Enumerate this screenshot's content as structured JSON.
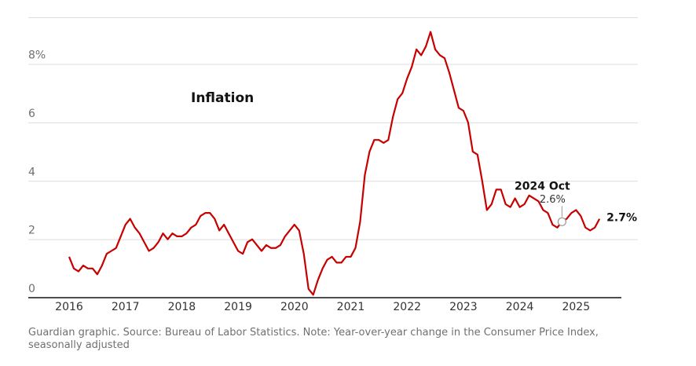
{
  "chart_data": {
    "type": "line",
    "title": "Inflation",
    "caption": "Guardian graphic. Source: Bureau of Labor Statistics. Note: Year-over-year change in the Consumer Price Index, seasonally adjusted",
    "categories": [
      "2016",
      null,
      null,
      null,
      null,
      null,
      null,
      null,
      null,
      null,
      null,
      null,
      "2017",
      null,
      null,
      null,
      null,
      null,
      null,
      null,
      null,
      null,
      null,
      null,
      "2018",
      null,
      null,
      null,
      null,
      null,
      null,
      null,
      null,
      null,
      null,
      null,
      "2019",
      null,
      null,
      null,
      null,
      null,
      null,
      null,
      null,
      null,
      null,
      null,
      "2020",
      null,
      null,
      null,
      null,
      null,
      null,
      null,
      null,
      null,
      null,
      null,
      "2021",
      null,
      null,
      null,
      null,
      null,
      null,
      null,
      null,
      null,
      null,
      null,
      "2022",
      null,
      null,
      null,
      null,
      null,
      null,
      null,
      null,
      null,
      null,
      null,
      "2023",
      null,
      null,
      null,
      null,
      null,
      null,
      null,
      null,
      null,
      null,
      null,
      "2024",
      null,
      null,
      null,
      null,
      null,
      null,
      null,
      null,
      null,
      null,
      null,
      "2025",
      null,
      null,
      null,
      null,
      null
    ],
    "series": [
      {
        "name": "Inflation",
        "color": "#c70000",
        "values": [
          1.4,
          1.0,
          0.9,
          1.1,
          1.0,
          1.0,
          0.8,
          1.1,
          1.5,
          1.6,
          1.7,
          2.1,
          2.5,
          2.7,
          2.4,
          2.2,
          1.9,
          1.6,
          1.7,
          1.9,
          2.2,
          2.0,
          2.2,
          2.1,
          2.1,
          2.2,
          2.4,
          2.5,
          2.8,
          2.9,
          2.9,
          2.7,
          2.3,
          2.5,
          2.2,
          1.9,
          1.6,
          1.5,
          1.9,
          2.0,
          1.8,
          1.6,
          1.8,
          1.7,
          1.7,
          1.8,
          2.1,
          2.3,
          2.5,
          2.3,
          1.5,
          0.3,
          0.1,
          0.6,
          1.0,
          1.3,
          1.4,
          1.2,
          1.2,
          1.4,
          1.4,
          1.7,
          2.6,
          4.2,
          5.0,
          5.4,
          5.4,
          5.3,
          5.4,
          6.2,
          6.8,
          7.0,
          7.5,
          7.9,
          8.5,
          8.3,
          8.6,
          9.1,
          8.5,
          8.3,
          8.2,
          7.7,
          7.1,
          6.5,
          6.4,
          6.0,
          5.0,
          4.9,
          4.0,
          3.0,
          3.2,
          3.7,
          3.7,
          3.2,
          3.1,
          3.4,
          3.1,
          3.2,
          3.5,
          3.4,
          3.3,
          3.0,
          2.9,
          2.5,
          2.4,
          2.6,
          2.7,
          2.9,
          3.0,
          2.8,
          2.4,
          2.3,
          2.4,
          2.7
        ],
        "value_labels": [
          null,
          null,
          null,
          null,
          null,
          null,
          null,
          null,
          null,
          null,
          null,
          null,
          null,
          null,
          null,
          null,
          null,
          null,
          null,
          null,
          null,
          null,
          null,
          null,
          null,
          null,
          null,
          null,
          null,
          null,
          null,
          null,
          null,
          null,
          null,
          null,
          null,
          null,
          null,
          null,
          null,
          null,
          null,
          null,
          null,
          null,
          null,
          null,
          null,
          null,
          null,
          null,
          null,
          null,
          null,
          null,
          null,
          null,
          null,
          null,
          null,
          null,
          null,
          null,
          null,
          null,
          null,
          null,
          null,
          null,
          null,
          null,
          null,
          null,
          null,
          null,
          null,
          null,
          null,
          null,
          null,
          null,
          null,
          null,
          null,
          null,
          null,
          null,
          null,
          null,
          null,
          null,
          null,
          null,
          null,
          null,
          null,
          null,
          null,
          null,
          null,
          null,
          null,
          null,
          null,
          "2.6%",
          null,
          null,
          null,
          null,
          null,
          null,
          null,
          "2.7%"
        ]
      }
    ],
    "annotation": "2024 Oct",
    "ylim": [
      0,
      9.6
    ],
    "yticks": [
      0,
      2,
      4,
      6,
      {
        "value": 8,
        "label": "8%"
      }
    ],
    "grid": true
  }
}
